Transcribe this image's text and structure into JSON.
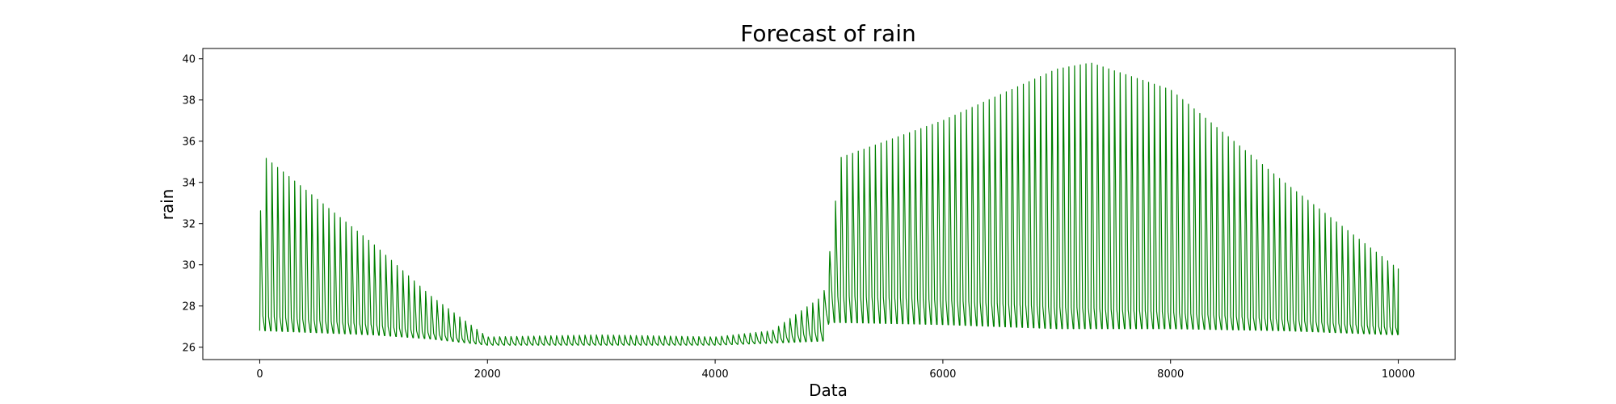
{
  "chart_data": {
    "type": "line",
    "title": "Forecast of rain",
    "xlabel": "Data",
    "ylabel": "rain",
    "xlim": [
      -500,
      10500
    ],
    "ylim": [
      25.4,
      40.5
    ],
    "xticks": [
      0,
      2000,
      4000,
      6000,
      8000,
      10000
    ],
    "yticks": [
      26,
      28,
      30,
      32,
      34,
      36,
      38,
      40
    ],
    "grid": false,
    "colors": {
      "line": "#008000",
      "axes": "#000000",
      "background": "#ffffff"
    },
    "series": [
      {
        "period": 50,
        "envelope_x": [
          0,
          50,
          1000,
          1500,
          2000,
          3000,
          4000,
          4500,
          4950,
          5000,
          5100,
          6000,
          7000,
          7300,
          8000,
          9000,
          10000
        ],
        "upper": [
          32.2,
          35.2,
          31.0,
          28.5,
          26.5,
          26.6,
          26.5,
          26.8,
          28.5,
          30.3,
          35.2,
          37.0,
          39.5,
          39.8,
          38.5,
          34.0,
          29.8
        ],
        "mid_high": [
          28.3,
          28.2,
          27.6,
          27.0,
          26.3,
          26.3,
          26.3,
          26.5,
          27.3,
          29.5,
          29.8,
          29.5,
          29.0,
          28.9,
          28.5,
          27.9,
          27.3
        ],
        "lower": [
          26.8,
          26.8,
          26.6,
          26.4,
          26.1,
          26.1,
          26.1,
          26.2,
          26.3,
          27.2,
          27.2,
          27.1,
          26.9,
          26.9,
          26.9,
          26.8,
          26.6
        ]
      }
    ]
  }
}
